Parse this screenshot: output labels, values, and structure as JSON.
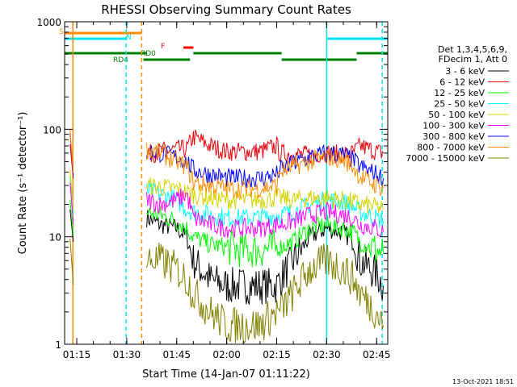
{
  "chart_data": {
    "type": "line",
    "title": "RHESSI Observing Summary Count Rates",
    "xlabel": "Start Time (14-Jan-07 01:11:22)",
    "ylabel": "Count Rate (s⁻¹ detector⁻¹)",
    "y_scale": "log",
    "ylim": [
      1,
      1000
    ],
    "xlim": [
      "01:11:22",
      "02:48:20"
    ],
    "x_tick_labels": [
      "01:15",
      "01:30",
      "01:45",
      "02:00",
      "02:15",
      "02:30",
      "02:45"
    ],
    "y_tick_labels": [
      "1",
      "10",
      "100",
      "1000"
    ],
    "legend_header": [
      "Det 1,3,4,5,6,9,",
      "FDecim 1, Att 0"
    ],
    "legend_placement": "right",
    "footer_date": "13-Oct-2021 18:51",
    "flag_labels": [
      "S",
      "N",
      "F",
      "RD0",
      "RD4"
    ],
    "flags": [
      {
        "label": "S",
        "color": "#ff8c00",
        "intervals": [
          [
            "01:11:22",
            "01:34:30"
          ]
        ]
      },
      {
        "label": "N",
        "color": "#00e5ee",
        "intervals": [
          [
            "01:11:22",
            "01:30:00"
          ],
          [
            "02:30:00",
            "02:48:20"
          ]
        ]
      },
      {
        "label": "F",
        "color": "#ff0000",
        "intervals": [
          [
            "01:47:00",
            "01:50:00"
          ]
        ]
      },
      {
        "label": "RD0",
        "color": "#008000",
        "intervals": [
          [
            "01:11:22",
            "01:36:00"
          ],
          [
            "01:50:00",
            "02:16:30"
          ],
          [
            "02:39:00",
            "02:48:20"
          ]
        ]
      },
      {
        "label": "RD4",
        "color": "#008000",
        "intervals": [
          [
            "01:35:00",
            "01:49:00"
          ],
          [
            "02:16:30",
            "02:39:00"
          ]
        ]
      }
    ],
    "vlines": [
      {
        "x": "01:13:50",
        "color": "#ff8c00",
        "style": "solid"
      },
      {
        "x": "01:29:50",
        "color": "#00e5ee",
        "style": "dashed"
      },
      {
        "x": "01:34:30",
        "color": "#ff8c00",
        "style": "dashed"
      },
      {
        "x": "02:30:00",
        "color": "#00e5ee",
        "style": "solid"
      },
      {
        "x": "02:46:40",
        "color": "#00e5ee",
        "style": "dashed"
      }
    ],
    "x": [
      "01:36",
      "01:40",
      "01:45",
      "01:48",
      "01:50",
      "01:55",
      "02:00",
      "02:05",
      "02:10",
      "02:15",
      "02:16",
      "02:20",
      "02:25",
      "02:30",
      "02:35",
      "02:38",
      "02:40",
      "02:45",
      "02:47"
    ],
    "series": [
      {
        "name": "3 - 6 keV",
        "color": "#000000",
        "values": [
          15,
          13,
          12,
          10,
          6,
          4,
          3.5,
          3.5,
          3.5,
          3.5,
          4,
          6,
          10,
          12,
          11,
          9,
          6,
          4.5,
          3.5
        ]
      },
      {
        "name": "6 - 12 keV",
        "color": "#e8000b",
        "values": [
          58,
          62,
          65,
          65,
          85,
          70,
          62,
          62,
          62,
          70,
          60,
          58,
          58,
          60,
          58,
          60,
          70,
          62,
          60
        ]
      },
      {
        "name": "12 - 25 keV",
        "color": "#00ff00",
        "values": [
          17,
          16,
          14,
          12,
          10,
          8.5,
          8,
          7.5,
          7.5,
          8,
          8,
          9,
          12,
          13,
          12,
          11,
          9,
          7.5,
          7
        ]
      },
      {
        "name": "25 - 50 keV",
        "color": "#00ffff",
        "values": [
          27,
          25,
          22,
          18,
          17,
          16,
          15,
          15,
          15,
          16,
          16,
          17,
          20,
          22,
          21,
          19,
          17,
          15,
          14
        ]
      },
      {
        "name": "50 - 100 keV",
        "color": "#d4d400",
        "values": [
          30,
          29,
          28,
          26,
          25,
          23,
          22,
          22,
          22,
          23,
          23,
          22,
          23,
          23,
          22,
          21,
          20,
          19,
          18
        ]
      },
      {
        "name": "100 - 300 keV",
        "color": "#ff00ff",
        "values": [
          22,
          20,
          22,
          25,
          15,
          13,
          12,
          12,
          12,
          13,
          13,
          14,
          16,
          17,
          16,
          15,
          13,
          12,
          11
        ]
      },
      {
        "name": "300 - 800 keV",
        "color": "#0000ff",
        "values": [
          62,
          60,
          55,
          50,
          42,
          38,
          35,
          35,
          35,
          38,
          42,
          48,
          55,
          60,
          58,
          52,
          45,
          38,
          35
        ]
      },
      {
        "name": "800 - 7000 keV",
        "color": "#ff8c00",
        "values": [
          65,
          60,
          50,
          45,
          32,
          30,
          28,
          28,
          28,
          30,
          40,
          45,
          50,
          55,
          52,
          45,
          36,
          30,
          28
        ]
      },
      {
        "name": "7000 - 15000 keV",
        "color": "#808000",
        "values": [
          6,
          6,
          5,
          4,
          3,
          2,
          1.5,
          1.5,
          1.5,
          2,
          2,
          3,
          5,
          6,
          5,
          4,
          3,
          2,
          1.5
        ]
      }
    ]
  }
}
